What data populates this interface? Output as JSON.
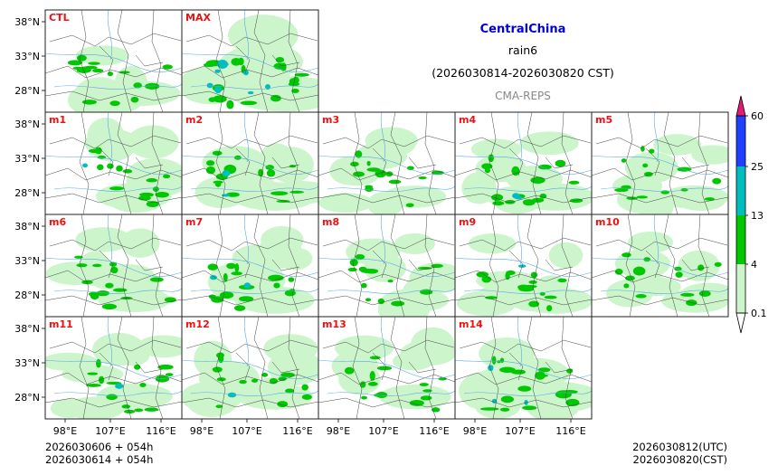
{
  "chart_data": {
    "type": "heatmap",
    "title": "CentralChina",
    "variable": "rain6",
    "period": "(2026030814-2026030820 CST)",
    "source": "CMA-REPS",
    "panels": [
      {
        "label": "CTL",
        "intensity": 0.55
      },
      {
        "label": "MAX",
        "intensity": 1.0
      },
      {
        "label": "m1",
        "intensity": 0.6
      },
      {
        "label": "m2",
        "intensity": 0.7
      },
      {
        "label": "m3",
        "intensity": 0.45
      },
      {
        "label": "m4",
        "intensity": 0.65
      },
      {
        "label": "m5",
        "intensity": 0.5
      },
      {
        "label": "m6",
        "intensity": 0.55
      },
      {
        "label": "m7",
        "intensity": 0.65
      },
      {
        "label": "m8",
        "intensity": 0.5
      },
      {
        "label": "m9",
        "intensity": 0.6
      },
      {
        "label": "m10",
        "intensity": 0.5
      },
      {
        "label": "m11",
        "intensity": 0.6
      },
      {
        "label": "m12",
        "intensity": 0.6
      },
      {
        "label": "m13",
        "intensity": 0.55
      },
      {
        "label": "m14",
        "intensity": 0.8
      }
    ],
    "y_ticks": [
      "38°N",
      "33°N",
      "28°N"
    ],
    "x_ticks": [
      "98°E",
      "107°E",
      "116°E"
    ],
    "colorbar": {
      "levels": [
        "0.1",
        "4",
        "13",
        "25",
        "60"
      ],
      "colors": [
        "#ccf5cc",
        "#00c800",
        "#00bebe",
        "#2040ff",
        "#e8187a"
      ]
    },
    "footer_left": [
      "2026030606  +  054h",
      "2026030614  +  054h"
    ],
    "footer_right": [
      "2026030812(UTC)",
      "2026030820(CST)"
    ]
  },
  "colors": {
    "title": "#0000dd",
    "label": "#ee1111",
    "source": "#888888",
    "light_green": "#ccf5cc",
    "green": "#00c800",
    "cyan": "#00bebe",
    "blue": "#2040ff",
    "river": "#5aa6e6",
    "border": "#333333"
  }
}
